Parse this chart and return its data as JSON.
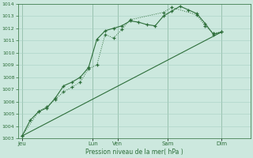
{
  "xlabel": "Pression niveau de la mer( hPa )",
  "background_color": "#cce8de",
  "grid_color": "#a8cfc4",
  "line_color": "#2d6e3a",
  "ylim": [
    1003,
    1014
  ],
  "yticks": [
    1003,
    1004,
    1005,
    1006,
    1007,
    1008,
    1009,
    1010,
    1011,
    1012,
    1013,
    1014
  ],
  "xlim": [
    0,
    28
  ],
  "x_day_labels": [
    "Jeu",
    "Lun",
    "Ven",
    "Sam",
    "Dim"
  ],
  "x_day_positions": [
    0.5,
    9,
    12,
    18,
    24.5
  ],
  "vline_positions": [
    0.5,
    9,
    12,
    18,
    24.5
  ],
  "series1_x": [
    0.5,
    1.5,
    2.5,
    3.5,
    4.5,
    5.5,
    6.5,
    7.5,
    8.5,
    9.5,
    10.5,
    11.5,
    12.5,
    13.5,
    14.5,
    15.5,
    16.5,
    17.5,
    18.5,
    19.5,
    20.5,
    21.5,
    22.5,
    23.5,
    24.5
  ],
  "series1_y": [
    1003.2,
    1004.5,
    1005.2,
    1005.5,
    1006.3,
    1007.3,
    1007.6,
    1008.0,
    1008.8,
    1011.1,
    1011.8,
    1012.0,
    1012.2,
    1012.6,
    1012.5,
    1012.3,
    1012.2,
    1013.0,
    1013.4,
    1013.8,
    1013.5,
    1013.2,
    1012.4,
    1011.5,
    1011.7
  ],
  "series2_x": [
    0.5,
    2.5,
    3.5,
    4.5,
    5.5,
    6.5,
    7.5,
    8.5,
    9.5,
    10.5,
    11.5,
    12.5,
    13.5,
    17.5,
    18.5,
    21.5,
    22.5,
    23.5,
    24.5
  ],
  "series2_y": [
    1003.2,
    1005.2,
    1005.6,
    1006.2,
    1006.8,
    1007.2,
    1007.6,
    1008.7,
    1009.0,
    1011.5,
    1011.2,
    1011.9,
    1012.7,
    1013.3,
    1013.7,
    1013.1,
    1012.2,
    1011.6,
    1011.7
  ],
  "series3_x": [
    0.5,
    24.5
  ],
  "series3_y": [
    1003.2,
    1011.7
  ]
}
